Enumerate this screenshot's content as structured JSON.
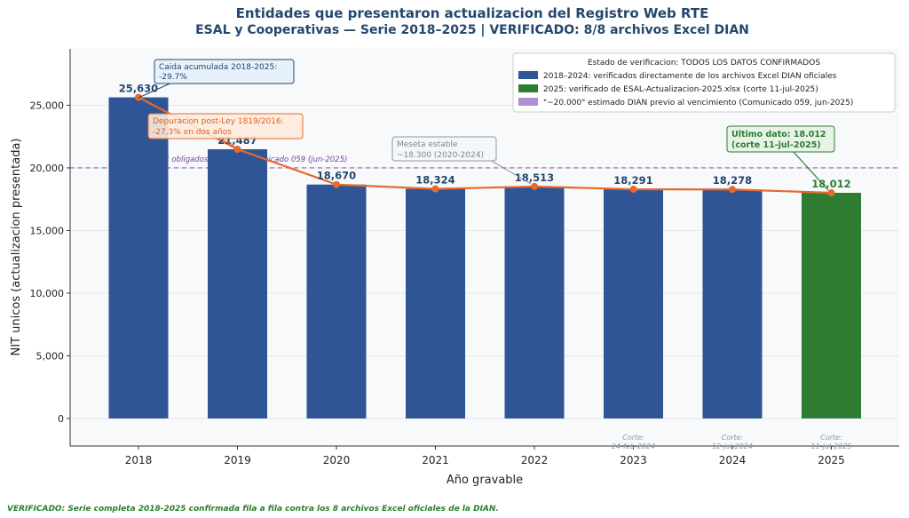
{
  "chart_data": {
    "type": "bar",
    "title_line1": "Entidades que presentaron actualizacion del Registro Web RTE",
    "title_line2": "ESAL y Cooperativas — Serie 2018–2025  |  VERIFICADO: 8/8 archivos Excel DIAN",
    "xlabel": "Año gravable",
    "ylabel": "NIT unicos (actualizacion presentada)",
    "categories": [
      "2018",
      "2019",
      "2020",
      "2021",
      "2022",
      "2023",
      "2024",
      "2025"
    ],
    "values": [
      25630,
      21487,
      18670,
      18324,
      18513,
      18291,
      18278,
      18012
    ],
    "value_labels": [
      "25,630",
      "21,487",
      "18,670",
      "18,324",
      "18,513",
      "18,291",
      "18,278",
      "18,012"
    ],
    "ylim": [
      -2200,
      29500
    ],
    "yticks": [
      0,
      5000,
      10000,
      15000,
      20000,
      25000
    ],
    "ytick_labels": [
      "0",
      "5,000",
      "10,000",
      "15,000",
      "20,000",
      "25,000"
    ],
    "grid": true,
    "bar_colors": [
      "#2f5597",
      "#2f5597",
      "#2f5597",
      "#2f5597",
      "#2f5597",
      "#2f5597",
      "#2f5597",
      "#2e7d32"
    ],
    "line_color": "#e8692a",
    "reference_line": {
      "value": 20000,
      "label": "\"~20.000\" obligados — DIAN Comunicado 059 (jun-2025)",
      "color": "#9b59b6"
    },
    "legend": {
      "placement": "top-right",
      "title": "Estado de verificacion: TODOS LOS DATOS CONFIRMADOS",
      "entries": [
        {
          "label": "2018–2024: verificados directamente de los archivos Excel DIAN oficiales",
          "color": "#2f5597"
        },
        {
          "label": "2025: verificado de ESAL-Actualizacion-2025.xlsx (corte 11-jul-2025)",
          "color": "#2e7d32"
        },
        {
          "label": "\"~20.000\" estimado DIAN previo al vencimiento (Comunicado 059, jun-2025)",
          "color": "#b08fd0"
        }
      ]
    },
    "annotations": {
      "caida": {
        "line1": "Caida acumulada 2018-2025:",
        "line2": "-29.7%"
      },
      "depuracion": {
        "line1": "Depuracion post-Ley 1819/2016:",
        "line2": "-27,3% en dos años"
      },
      "meseta": {
        "line1": "Meseta estable",
        "line2": "~18.300 (2020-2024)"
      },
      "ultimo": {
        "line1": "Ultimo dato: 18.012",
        "line2": "(corte 11-jul-2025)"
      }
    },
    "cut_labels": [
      {
        "year": "2023",
        "line1": "Corte:",
        "line2": "24-feb-2024"
      },
      {
        "year": "2024",
        "line1": "Corte:",
        "line2": "12-jul-2024"
      },
      {
        "year": "2025",
        "line1": "Corte:",
        "line2": "11-jul-2025"
      }
    ]
  },
  "footer": "VERIFICADO: Serie completa 2018-2025 confirmada fila a fila contra los 8 archivos Excel oficiales de la DIAN."
}
